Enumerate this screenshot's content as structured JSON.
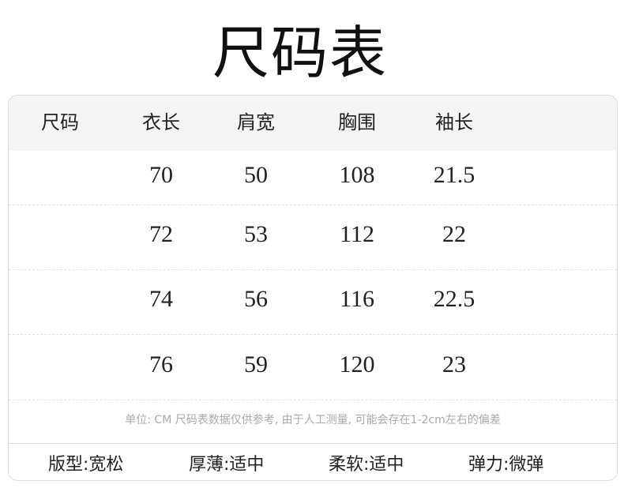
{
  "title": "尺码表",
  "headers": [
    "尺码",
    "衣长",
    "肩宽",
    "胸围",
    "袖长"
  ],
  "rows": [
    [
      "",
      "70",
      "50",
      "108",
      "21.5"
    ],
    [
      "",
      "72",
      "53",
      "112",
      "22"
    ],
    [
      "",
      "74",
      "56",
      "116",
      "22.5"
    ],
    [
      "",
      "76",
      "59",
      "120",
      "23"
    ]
  ],
  "note": "单位: CM 尺码表数据仅供参考, 由于人工测量, 可能会存在1-2cm左右的偏差",
  "attributes": [
    "版型:宽松",
    "厚薄:适中",
    "柔软:适中",
    "弹力:微弹"
  ]
}
